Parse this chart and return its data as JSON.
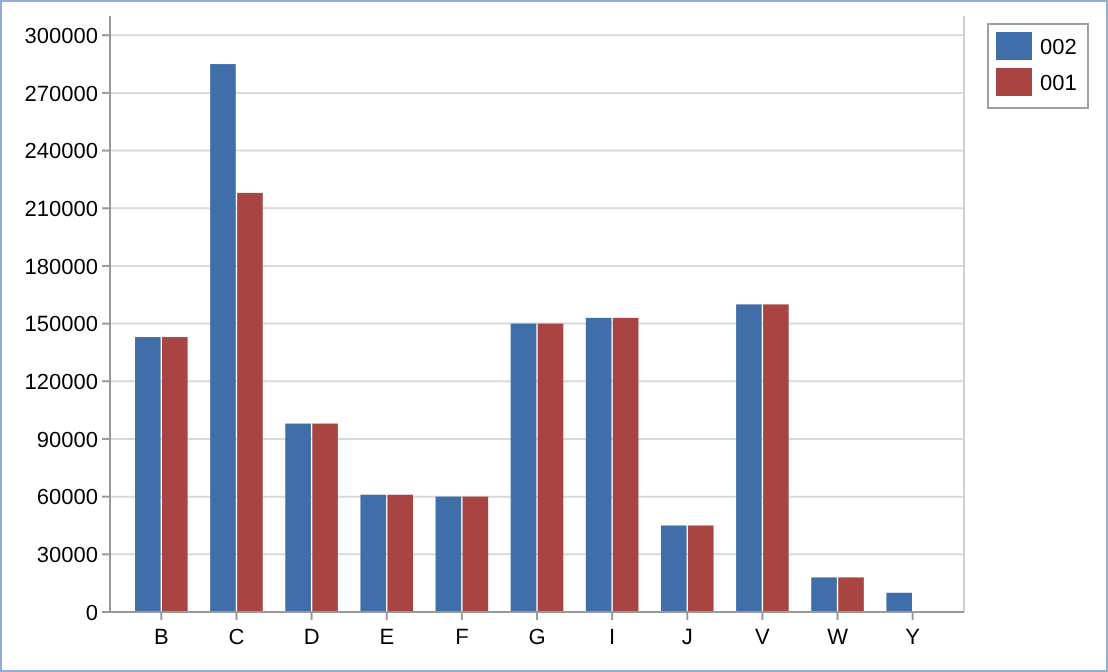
{
  "chart_data": {
    "type": "bar",
    "categories": [
      "B",
      "C",
      "D",
      "E",
      "F",
      "G",
      "I",
      "J",
      "V",
      "W",
      "Y"
    ],
    "series": [
      {
        "name": "002",
        "color": "#3f6ea8",
        "values": [
          143000,
          285000,
          98000,
          61000,
          60000,
          150000,
          153000,
          45000,
          160000,
          18000,
          10000
        ]
      },
      {
        "name": "001",
        "color": "#a84542",
        "values": [
          143000,
          218000,
          98000,
          61000,
          60000,
          150000,
          153000,
          45000,
          160000,
          18000,
          0
        ]
      }
    ],
    "ylim": [
      0,
      310000
    ],
    "yticks": [
      0,
      30000,
      60000,
      90000,
      120000,
      150000,
      180000,
      210000,
      240000,
      270000,
      300000
    ],
    "grid": "y",
    "legend": "top right"
  }
}
